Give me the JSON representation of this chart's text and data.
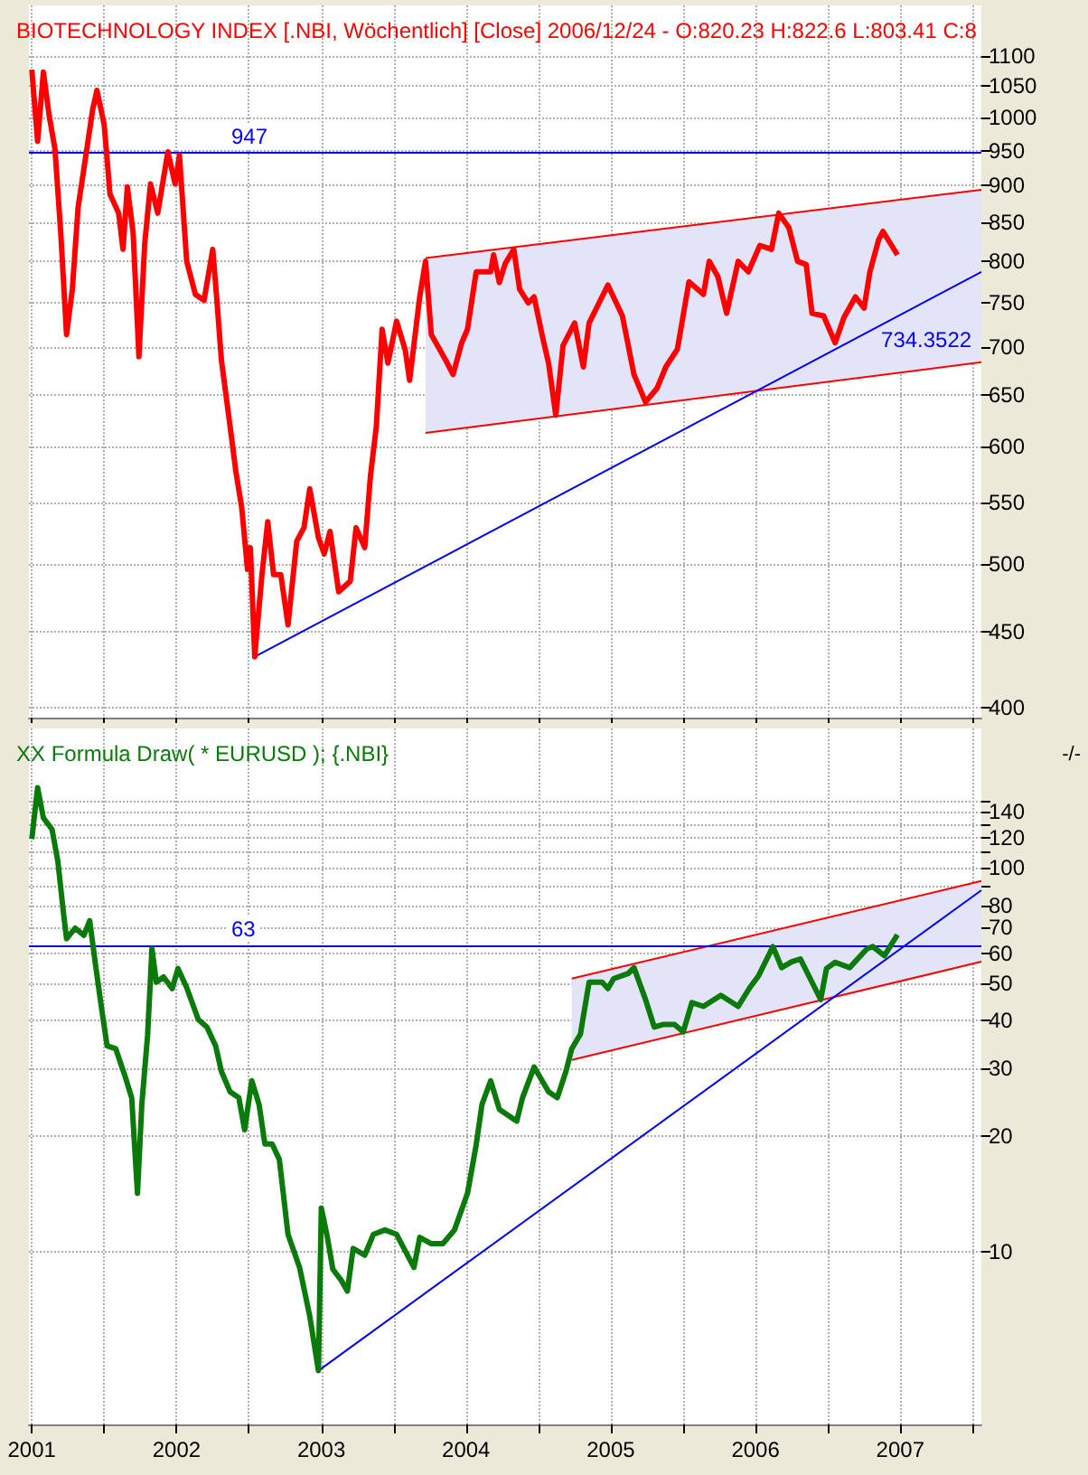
{
  "chart_data": [
    {
      "type": "line",
      "title": "BIOTECHNOLOGY INDEX [.NBI, Wöchentlich] [Close] 2006/12/24 - O:820.23 H:822.6 L:803.41 C:8",
      "xlim": [
        2000.98,
        2007.56
      ],
      "xticks": [
        2001,
        {
          "value": 2001.5,
          "label": null
        },
        2002,
        {
          "value": 2002.5,
          "label": null
        },
        2003,
        {
          "value": 2003.5,
          "label": null
        },
        2004,
        {
          "value": 2004.5,
          "label": null
        },
        2005,
        {
          "value": 2005.5,
          "label": null
        },
        2006,
        {
          "value": 2006.5,
          "label": null
        },
        2007,
        {
          "value": 2007.5,
          "label": null
        }
      ],
      "ylim": [
        394,
        1190
      ],
      "yticks": [
        400,
        450,
        500,
        550,
        600,
        650,
        700,
        750,
        800,
        850,
        900,
        950,
        1000,
        1050,
        1100
      ],
      "log": true,
      "grid": true,
      "marker": "none",
      "tick_labels": "y",
      "ref_lines": [
        {
          "axis": "y",
          "value": 947,
          "label": "947",
          "color": "#0000ff"
        }
      ],
      "annotations": [
        {
          "text": "734.3522",
          "x": 2006.98,
          "y": 734.3522
        }
      ],
      "series": [
        {
          "color": "#ff0000",
          "x": [
            2003.72,
            2007.56
          ],
          "values": [
            804,
            894
          ],
          "lower": [
            613,
            684
          ],
          "upper": [
            804,
            894
          ]
        },
        {
          "color": "#ff0000",
          "x": [
            2003.72,
            2007.56
          ],
          "values": [
            613,
            684
          ]
        },
        {
          "color": "#0000ff",
          "x": [
            2002.54,
            2007.56
          ],
          "values": [
            433,
            787
          ]
        },
        {
          "color": "#ff0000",
          "x": [
            2001.0,
            2001.04,
            2001.08,
            2001.12,
            2001.16,
            2001.2,
            2001.24,
            2001.28,
            2001.32,
            2001.38,
            2001.42,
            2001.45,
            2001.5,
            2001.54,
            2001.6,
            2001.63,
            2001.66,
            2001.7,
            2001.74,
            2001.78,
            2001.82,
            2001.87,
            2001.94,
            2001.99,
            2002.02,
            2002.07,
            2002.13,
            2002.19,
            2002.25,
            2002.28,
            2002.31,
            2002.37,
            2002.41,
            2002.45,
            2002.49,
            2002.51,
            2002.54,
            2002.59,
            2002.63,
            2002.67,
            2002.72,
            2002.77,
            2002.83,
            2002.88,
            2002.92,
            2002.98,
            2003.02,
            2003.06,
            2003.12,
            2003.2,
            2003.24,
            2003.3,
            2003.34,
            2003.38,
            2003.42,
            2003.46,
            2003.52,
            2003.58,
            2003.61,
            2003.68,
            2003.72,
            2003.76,
            2003.86,
            2003.91,
            2003.97,
            2004.01,
            2004.07,
            2004.17,
            2004.19,
            2004.23,
            2004.27,
            2004.33,
            2004.37,
            2004.43,
            2004.47,
            2004.53,
            2004.57,
            2004.62,
            2004.67,
            2004.75,
            2004.81,
            2004.85,
            2004.98,
            2005.08,
            2005.16,
            2005.24,
            2005.32,
            2005.38,
            2005.46,
            2005.54,
            2005.64,
            2005.68,
            2005.74,
            2005.8,
            2005.88,
            2005.95,
            2006.03,
            2006.11,
            2006.16,
            2006.23,
            2006.29,
            2006.35,
            2006.39,
            2006.47,
            2006.55,
            2006.61,
            2006.69,
            2006.75,
            2006.79,
            2006.85,
            2006.88,
            2006.98
          ],
          "values": [
            1077,
            964,
            1073,
            1003,
            952,
            836,
            714,
            766,
            870,
            952,
            1012,
            1043,
            989,
            888,
            862,
            815,
            898,
            836,
            690,
            822,
            902,
            862,
            948,
            902,
            943,
            800,
            760,
            753,
            815,
            750,
            686,
            619,
            577,
            546,
            496,
            513,
            433,
            492,
            534,
            492,
            492,
            455,
            518,
            529,
            562,
            521,
            508,
            526,
            479,
            487,
            529,
            513,
            574,
            619,
            720,
            683,
            729,
            697,
            665,
            757,
            800,
            714,
            686,
            671,
            705,
            720,
            787,
            787,
            808,
            774,
            797,
            815,
            766,
            750,
            757,
            710,
            683,
            630,
            702,
            727,
            679,
            727,
            771,
            735,
            671,
            643,
            657,
            679,
            698,
            775,
            760,
            800,
            781,
            738,
            800,
            787,
            820,
            815,
            862,
            843,
            800,
            796,
            738,
            735,
            705,
            733,
            757,
            744,
            787,
            827,
            838,
            808
          ]
        }
      ]
    },
    {
      "type": "line",
      "title": "XX Formula Draw( * EURUSD ); {.NBI}",
      "xlim": [
        2000.98,
        2007.56
      ],
      "xticks": [
        2001,
        {
          "value": 2001.5,
          "label": null
        },
        2002,
        {
          "value": 2002.5,
          "label": null
        },
        2003,
        {
          "value": 2003.5,
          "label": null
        },
        2004,
        {
          "value": 2004.5,
          "label": null
        },
        2005,
        {
          "value": 2005.5,
          "label": null
        },
        2006,
        {
          "value": 2006.5,
          "label": null
        },
        2007,
        {
          "value": 2007.5,
          "label": null
        }
      ],
      "ylim": [
        3.55,
        231
      ],
      "yticks": [
        10,
        20,
        30,
        40,
        50,
        60,
        70,
        80,
        {
          "value": 90,
          "label": null
        },
        100,
        {
          "value": 110,
          "label": null
        },
        120,
        {
          "value": 130,
          "label": null
        },
        140,
        {
          "value": 150,
          "label": null
        }
      ],
      "log": true,
      "grid": true,
      "marker": "none",
      "ref_lines": [
        {
          "axis": "y",
          "value": 63,
          "label": "63",
          "color": "#0000ff"
        }
      ],
      "annotations": [
        "-/-"
      ],
      "series": [
        {
          "color": "#ff0000",
          "x": [
            2004.73,
            2007.56
          ],
          "values": [
            51.5,
            92.5
          ],
          "lower": [
            31.6,
            57
          ],
          "upper": [
            51.5,
            92.5
          ]
        },
        {
          "color": "#ff0000",
          "x": [
            2004.73,
            2007.56
          ],
          "values": [
            31.6,
            57
          ]
        },
        {
          "color": "#0000ff",
          "x": [
            2002.98,
            2007.56
          ],
          "values": [
            4.9,
            87.5
          ]
        },
        {
          "color": "#0a7a0a",
          "x": [
            2001.0,
            2001.04,
            2001.08,
            2001.14,
            2001.18,
            2001.22,
            2001.24,
            2001.3,
            2001.36,
            2001.4,
            2001.44,
            2001.48,
            2001.52,
            2001.58,
            2001.64,
            2001.69,
            2001.73,
            2001.76,
            2001.8,
            2001.83,
            2001.86,
            2001.91,
            2001.97,
            2002.01,
            2002.07,
            2002.15,
            2002.21,
            2002.27,
            2002.31,
            2002.37,
            2002.43,
            2002.47,
            2002.52,
            2002.57,
            2002.61,
            2002.66,
            2002.71,
            2002.77,
            2002.85,
            2002.92,
            2002.98,
            2003.0,
            2003.04,
            2003.08,
            2003.14,
            2003.18,
            2003.22,
            2003.3,
            2003.36,
            2003.44,
            2003.52,
            2003.64,
            2003.68,
            2003.76,
            2003.84,
            2003.92,
            2004.01,
            2004.07,
            2004.11,
            2004.17,
            2004.23,
            2004.35,
            2004.39,
            2004.47,
            2004.57,
            2004.63,
            2004.69,
            2004.73,
            2004.79,
            2004.85,
            2004.94,
            2004.98,
            2005.02,
            2005.12,
            2005.16,
            2005.24,
            2005.3,
            2005.36,
            2005.44,
            2005.5,
            2005.56,
            2005.64,
            2005.76,
            2005.88,
            2005.96,
            2006.02,
            2006.12,
            2006.18,
            2006.25,
            2006.31,
            2006.39,
            2006.45,
            2006.49,
            2006.55,
            2006.65,
            2006.77,
            2006.81,
            2006.89,
            2006.98
          ],
          "values": [
            119,
            162,
            135,
            126,
            104,
            75.6,
            65.4,
            69.7,
            66.8,
            72.9,
            56,
            43.6,
            34.4,
            33.8,
            29,
            25.2,
            14.2,
            24.2,
            36.7,
            61.6,
            50.4,
            52,
            48.5,
            54.7,
            48.8,
            40.3,
            38.5,
            34.4,
            29.5,
            26.1,
            25.2,
            20.8,
            27.9,
            24.2,
            19.1,
            19.1,
            17.4,
            11.1,
            9.1,
            6.8,
            4.9,
            13,
            11,
            9,
            8.4,
            7.9,
            10.2,
            9.8,
            11.1,
            11.4,
            11.1,
            9.1,
            10.9,
            10.5,
            10.5,
            11.4,
            14.2,
            19,
            24.2,
            27.9,
            23.5,
            21.9,
            25.2,
            30.3,
            26.1,
            25.2,
            29.5,
            33.8,
            36.9,
            50.4,
            50.4,
            48.5,
            51.5,
            53.1,
            55,
            45.4,
            38.5,
            39.1,
            39.1,
            37.4,
            44.6,
            43.6,
            46.6,
            43.6,
            48.8,
            52.3,
            62.4,
            55,
            57,
            57.9,
            50.4,
            45.4,
            54.7,
            56.8,
            55,
            61.6,
            62.4,
            59.1,
            67
          ]
        }
      ]
    }
  ]
}
